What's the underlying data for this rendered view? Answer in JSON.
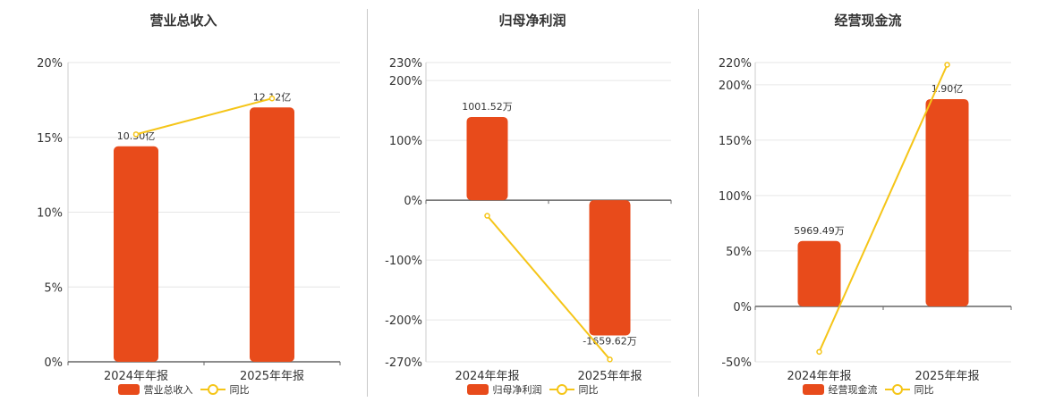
{
  "chart_data": [
    {
      "type": "bar",
      "title": "营业总收入",
      "categories": [
        "2024年年报",
        "2025年年报"
      ],
      "ylim": [
        0,
        20
      ],
      "y_ticks": [
        "20%",
        "15%",
        "10%",
        "5%",
        "0%"
      ],
      "y_tick_values": [
        20,
        15,
        10,
        5,
        0
      ],
      "series": [
        {
          "name": "营业总收入",
          "kind": "bar",
          "values": [
            14.4,
            17.0
          ],
          "labels": [
            "10.30亿",
            "12.12亿"
          ],
          "color": "#e84b1b"
        },
        {
          "name": "同比",
          "kind": "line",
          "values": [
            15.2,
            17.6
          ],
          "color": "#f5c518"
        }
      ],
      "legend_position": "bottom"
    },
    {
      "type": "bar",
      "title": "归母净利润",
      "categories": [
        "2024年年报",
        "2025年年报"
      ],
      "ylim": [
        -270,
        230
      ],
      "y_ticks": [
        "230%",
        "200%",
        "100%",
        "0%",
        "-100%",
        "-200%",
        "-270%"
      ],
      "y_tick_values": [
        230,
        200,
        100,
        0,
        -100,
        -200,
        -270
      ],
      "series": [
        {
          "name": "归母净利润",
          "kind": "bar",
          "values": [
            139,
            -226
          ],
          "labels": [
            "1001.52万",
            "-1659.62万"
          ],
          "color": "#e84b1b"
        },
        {
          "name": "同比",
          "kind": "line",
          "values": [
            -26,
            -266
          ],
          "color": "#f5c518"
        }
      ],
      "legend_position": "bottom"
    },
    {
      "type": "bar",
      "title": "经营现金流",
      "categories": [
        "2024年年报",
        "2025年年报"
      ],
      "ylim": [
        -50,
        220
      ],
      "y_ticks": [
        "220%",
        "200%",
        "150%",
        "100%",
        "50%",
        "0%",
        "-50%"
      ],
      "y_tick_values": [
        220,
        200,
        150,
        100,
        50,
        0,
        -50
      ],
      "series": [
        {
          "name": "经营现金流",
          "kind": "bar",
          "values": [
            59,
            187
          ],
          "labels": [
            "5969.49万",
            "1.90亿"
          ],
          "color": "#e84b1b"
        },
        {
          "name": "同比",
          "kind": "line",
          "values": [
            -41,
            218
          ],
          "color": "#f5c518"
        }
      ],
      "legend_position": "bottom"
    }
  ],
  "colors": {
    "bar": "#e84b1b",
    "line": "#f5c518",
    "grid": "#e6e6e6",
    "axis": "#666666",
    "text": "#333333"
  }
}
